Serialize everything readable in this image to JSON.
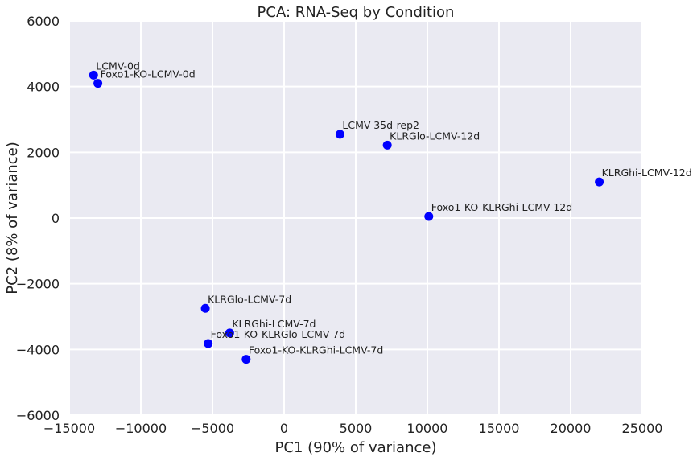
{
  "chart_data": {
    "type": "scatter",
    "title": "PCA: RNA-Seq by Condition",
    "xlabel": "PC1 (90% of variance)",
    "ylabel": "PC2 (8% of variance)",
    "xlim": [
      -15000,
      25000
    ],
    "ylim": [
      -6000,
      6000
    ],
    "xticks": [
      -15000,
      -10000,
      -5000,
      0,
      5000,
      10000,
      15000,
      20000,
      25000
    ],
    "xtick_labels": [
      "−15000",
      "−10000",
      "−5000",
      "0",
      "5000",
      "10000",
      "15000",
      "20000",
      "25000"
    ],
    "yticks": [
      -6000,
      -4000,
      -2000,
      0,
      2000,
      4000,
      6000
    ],
    "ytick_labels": [
      "−6000",
      "−4000",
      "−2000",
      "0",
      "2000",
      "4000",
      "6000"
    ],
    "grid": true,
    "background_color": "#eaeaf2",
    "grid_color": "#ffffff",
    "point_color": "#0000ff",
    "points": [
      {
        "label": "LCMV-0d",
        "x": -13300,
        "y": 4350
      },
      {
        "label": "Foxo1-KO-LCMV-0d",
        "x": -13000,
        "y": 4100
      },
      {
        "label": "LCMV-35d-rep2",
        "x": 3900,
        "y": 2550
      },
      {
        "label": "KLRGlo-LCMV-12d",
        "x": 7200,
        "y": 2220
      },
      {
        "label": "KLRGhi-LCMV-12d",
        "x": 22000,
        "y": 1100
      },
      {
        "label": "Foxo1-KO-KLRGhi-LCMV-12d",
        "x": 10100,
        "y": 50
      },
      {
        "label": "KLRGlo-LCMV-7d",
        "x": -5500,
        "y": -2750
      },
      {
        "label": "KLRGhi-LCMV-7d",
        "x": -3800,
        "y": -3500
      },
      {
        "label": "Foxo1-KO-KLRGlo-LCMV-7d",
        "x": -5300,
        "y": -3820
      },
      {
        "label": "Foxo1-KO-KLRGhi-LCMV-7d",
        "x": -2650,
        "y": -4300
      }
    ]
  }
}
